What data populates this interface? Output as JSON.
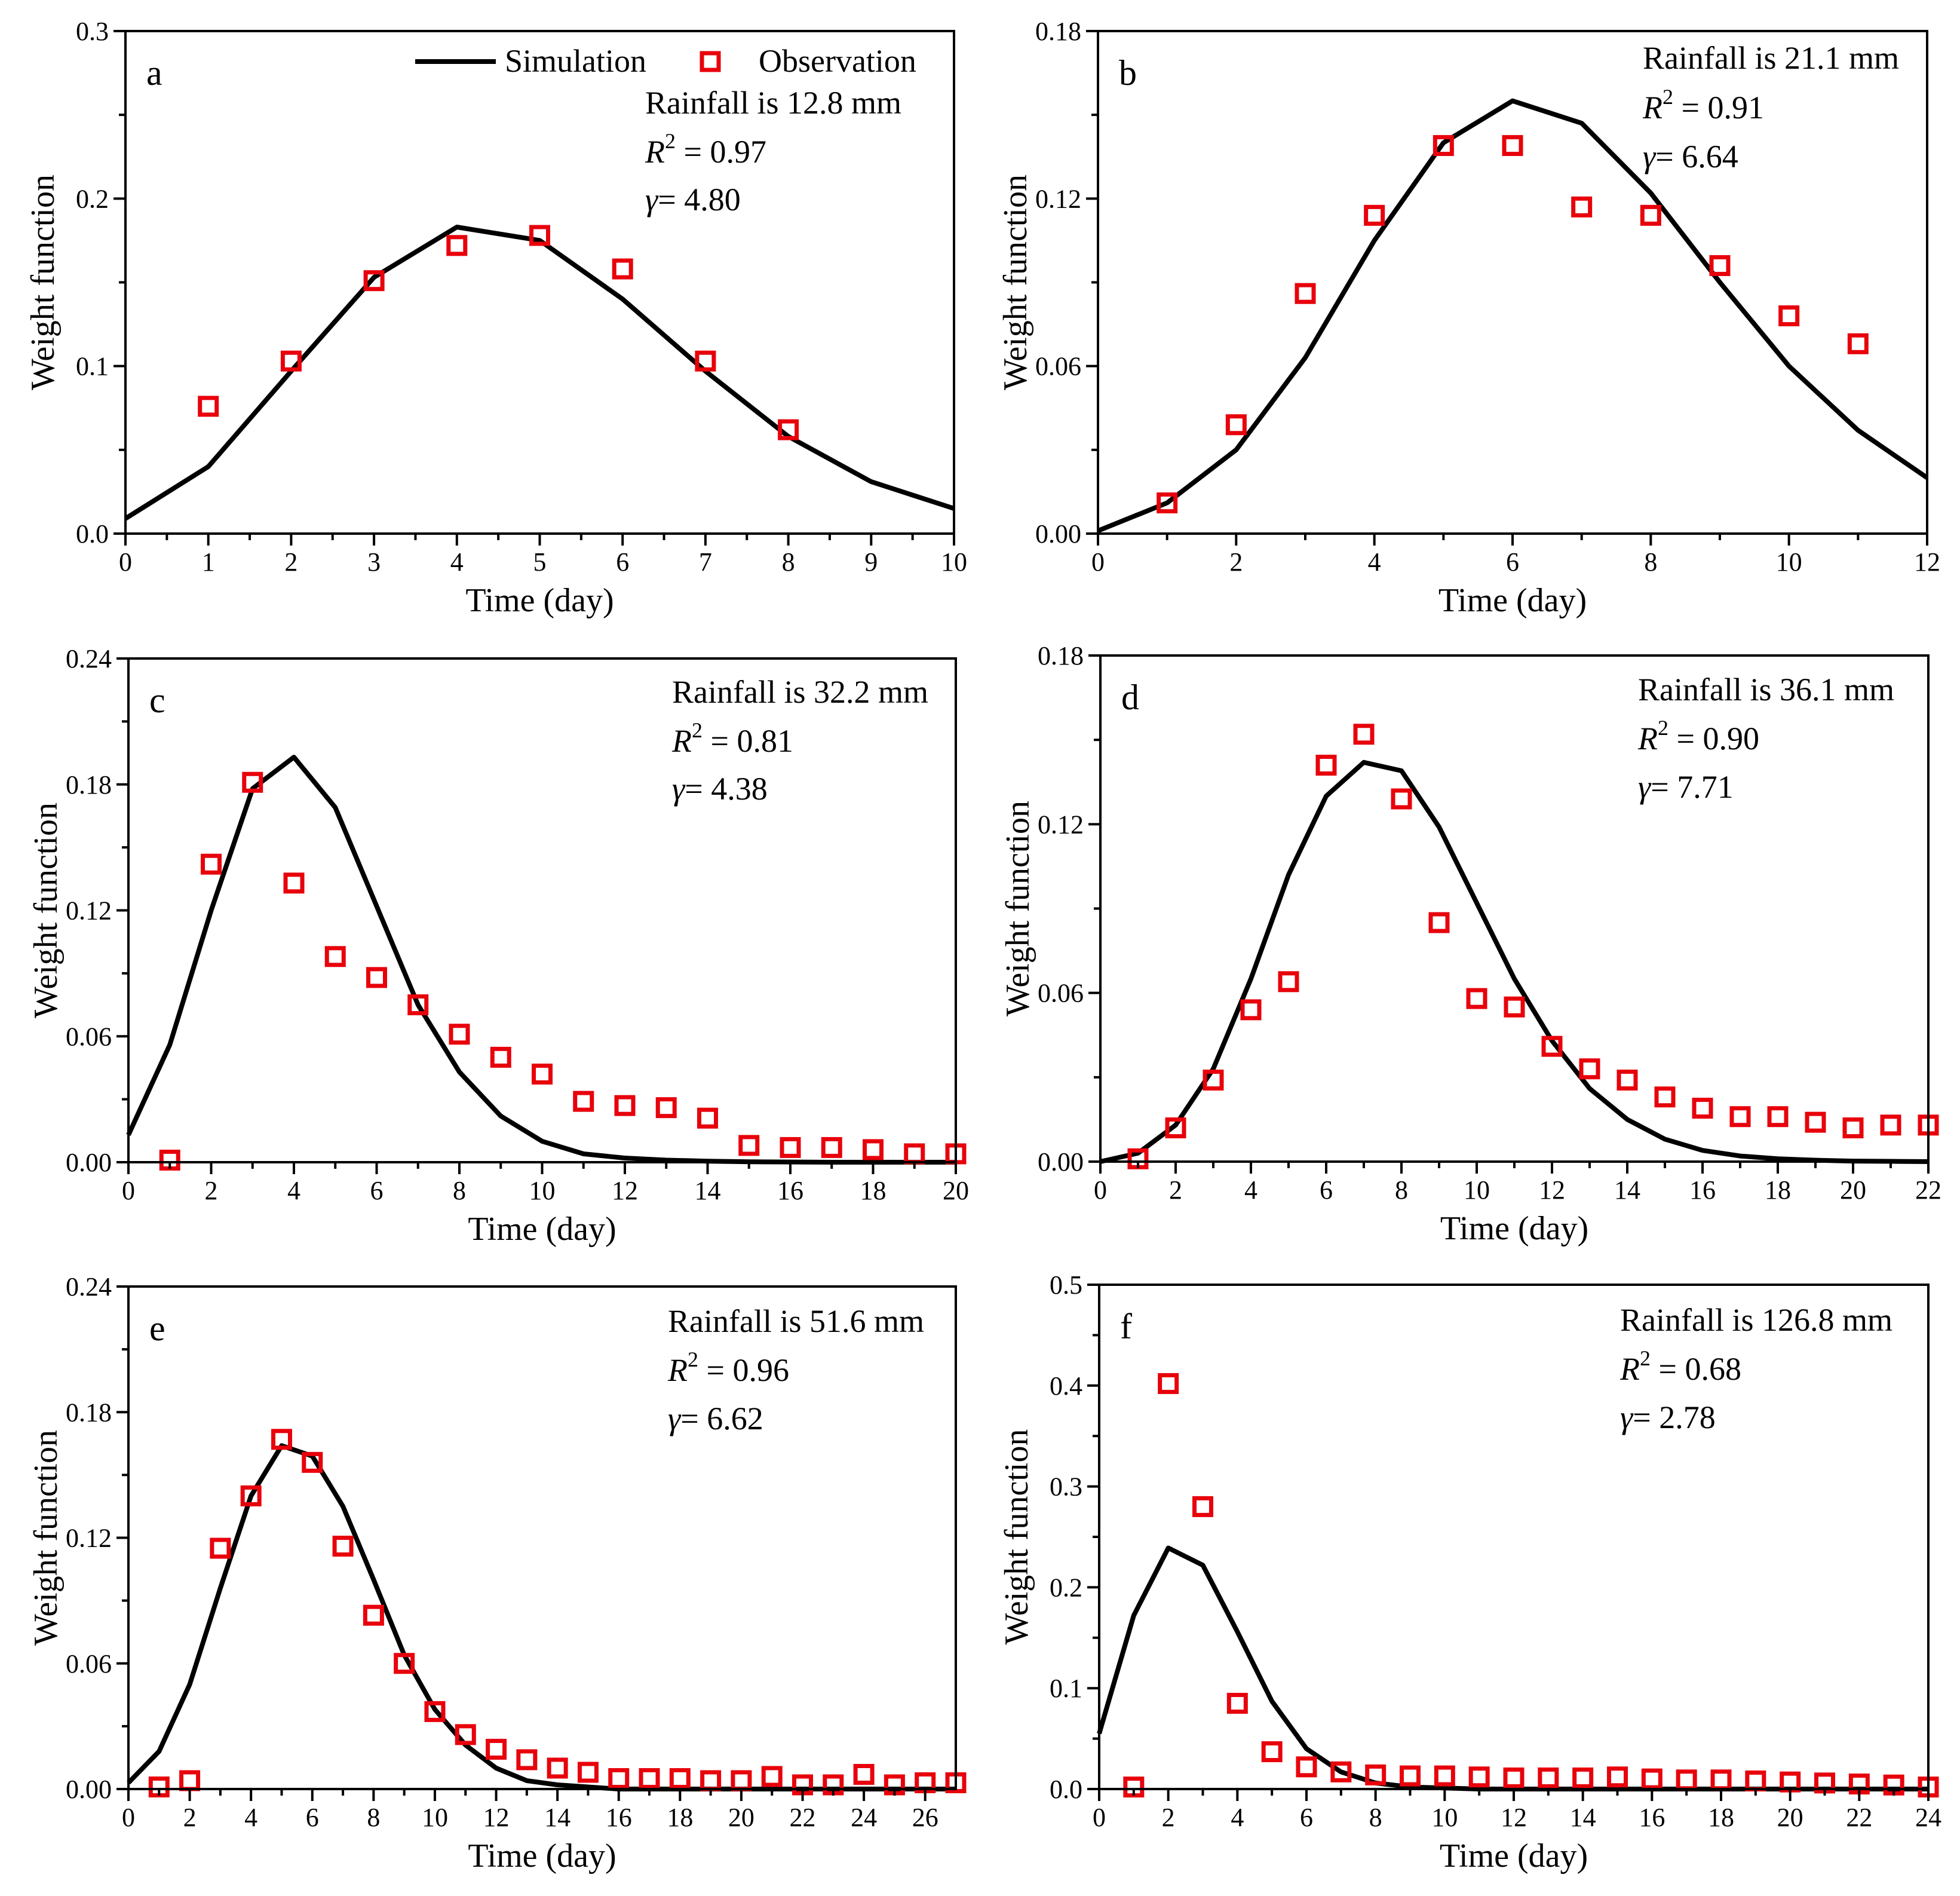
{
  "legend": {
    "simulation_label": "Simulation",
    "observation_label": "Observation"
  },
  "styles": {
    "sim_color": "#000000",
    "obs_color": "#e8000b"
  },
  "axis_labels": {
    "xlabel": "Time (day)",
    "ylabel": "Weight function"
  },
  "chart_data": [
    {
      "type": "line+scatter",
      "panel": "a",
      "rainfall_text": "Rainfall is 12.8 mm",
      "r2": "0.97",
      "gamma": "4.80",
      "xlim": [
        0,
        10
      ],
      "ylim": [
        0,
        0.3
      ],
      "xticks": [
        0,
        1,
        2,
        3,
        4,
        5,
        6,
        7,
        8,
        9,
        10
      ],
      "xtick_labels": [
        "0",
        "1",
        "2",
        "3",
        "4",
        "5",
        "6",
        "7",
        "8",
        "9",
        "10"
      ],
      "yticks": [
        0,
        0.1,
        0.2,
        0.3
      ],
      "ytick_labels": [
        "0.0",
        "0.1",
        "0.2",
        "0.3"
      ],
      "simulation": {
        "x": [
          0,
          1,
          2,
          3,
          4,
          5,
          6,
          7,
          8,
          9,
          10
        ],
        "y": [
          0.009,
          0.04,
          0.097,
          0.153,
          0.183,
          0.175,
          0.14,
          0.097,
          0.058,
          0.031,
          0.015
        ]
      },
      "observation": {
        "x": [
          1,
          2,
          3,
          4,
          5,
          6,
          7,
          8
        ],
        "y": [
          0.076,
          0.103,
          0.151,
          0.172,
          0.178,
          0.158,
          0.103,
          0.062
        ]
      }
    },
    {
      "type": "line+scatter",
      "panel": "b",
      "rainfall_text": "Rainfall is 21.1 mm",
      "r2": "0.91",
      "gamma": "6.64",
      "xlim": [
        0,
        12
      ],
      "ylim": [
        0,
        0.18
      ],
      "xticks": [
        0,
        2,
        4,
        6,
        8,
        10,
        12
      ],
      "xtick_labels": [
        "0",
        "2",
        "4",
        "6",
        "8",
        "10",
        "12"
      ],
      "yticks": [
        0,
        0.06,
        0.12,
        0.18
      ],
      "ytick_labels": [
        "0.00",
        "0.06",
        "0.12",
        "0.18"
      ],
      "simulation": {
        "x": [
          0,
          1,
          2,
          3,
          4,
          5,
          6,
          7,
          8,
          9,
          10,
          11,
          12
        ],
        "y": [
          0.001,
          0.011,
          0.03,
          0.063,
          0.105,
          0.14,
          0.155,
          0.147,
          0.122,
          0.09,
          0.06,
          0.037,
          0.02
        ]
      },
      "observation": {
        "x": [
          1,
          2,
          3,
          4,
          5,
          6,
          7,
          8,
          9,
          10,
          11
        ],
        "y": [
          0.011,
          0.039,
          0.086,
          0.114,
          0.139,
          0.139,
          0.117,
          0.114,
          0.096,
          0.078,
          0.068
        ]
      }
    },
    {
      "type": "line+scatter",
      "panel": "c",
      "rainfall_text": "Rainfall is 32.2 mm",
      "r2": "0.81",
      "gamma": "4.38",
      "xlim": [
        0,
        20
      ],
      "ylim": [
        0,
        0.24
      ],
      "xticks": [
        0,
        2,
        4,
        6,
        8,
        10,
        12,
        14,
        16,
        18,
        20
      ],
      "xtick_labels": [
        "0",
        "2",
        "4",
        "6",
        "8",
        "10",
        "12",
        "14",
        "16",
        "18",
        "20"
      ],
      "yticks": [
        0,
        0.06,
        0.12,
        0.18,
        0.24
      ],
      "ytick_labels": [
        "0.00",
        "0.06",
        "0.12",
        "0.18",
        "0.24"
      ],
      "simulation": {
        "x": [
          0,
          1,
          2,
          3,
          4,
          5,
          6,
          7,
          8,
          9,
          10,
          11,
          12,
          13,
          14,
          15,
          16,
          17,
          18,
          19,
          20
        ],
        "y": [
          0.013,
          0.056,
          0.12,
          0.178,
          0.193,
          0.169,
          0.122,
          0.075,
          0.043,
          0.022,
          0.01,
          0.004,
          0.002,
          0.001,
          0.0005,
          0.0002,
          0.0001,
          0,
          0,
          0,
          0
        ]
      },
      "observation": {
        "x": [
          1,
          2,
          3,
          4,
          5,
          6,
          7,
          8,
          9,
          10,
          11,
          12,
          13,
          14,
          15,
          16,
          17,
          18,
          19,
          20
        ],
        "y": [
          0.001,
          0.142,
          0.181,
          0.133,
          0.098,
          0.088,
          0.075,
          0.061,
          0.05,
          0.042,
          0.029,
          0.027,
          0.026,
          0.021,
          0.008,
          0.007,
          0.007,
          0.006,
          0.004,
          0.004
        ]
      }
    },
    {
      "type": "line+scatter",
      "panel": "d",
      "rainfall_text": "Rainfall is 36.1 mm",
      "r2": "0.90",
      "gamma": "7.71",
      "xlim": [
        0,
        22
      ],
      "ylim": [
        0,
        0.18
      ],
      "xticks": [
        0,
        2,
        4,
        6,
        8,
        10,
        12,
        14,
        16,
        18,
        20,
        22
      ],
      "xtick_labels": [
        "0",
        "2",
        "4",
        "6",
        "8",
        "10",
        "12",
        "14",
        "16",
        "18",
        "20",
        "22"
      ],
      "yticks": [
        0,
        0.06,
        0.12,
        0.18
      ],
      "ytick_labels": [
        "0.00",
        "0.06",
        "0.12",
        "0.18"
      ],
      "simulation": {
        "x": [
          0,
          1,
          2,
          3,
          4,
          5,
          6,
          7,
          8,
          9,
          10,
          11,
          12,
          13,
          14,
          15,
          16,
          17,
          18,
          19,
          20,
          21,
          22
        ],
        "y": [
          0,
          0.003,
          0.013,
          0.033,
          0.065,
          0.102,
          0.13,
          0.142,
          0.139,
          0.119,
          0.092,
          0.065,
          0.043,
          0.026,
          0.015,
          0.008,
          0.004,
          0.002,
          0.001,
          0.0005,
          0.0002,
          0.0001,
          0
        ]
      },
      "observation": {
        "x": [
          1,
          2,
          3,
          4,
          5,
          6,
          7,
          8,
          9,
          10,
          11,
          12,
          13,
          14,
          15,
          16,
          17,
          18,
          19,
          20,
          21,
          22
        ],
        "y": [
          0.001,
          0.012,
          0.029,
          0.054,
          0.064,
          0.141,
          0.152,
          0.129,
          0.085,
          0.058,
          0.055,
          0.041,
          0.033,
          0.029,
          0.023,
          0.019,
          0.016,
          0.016,
          0.014,
          0.012,
          0.013,
          0.013
        ]
      }
    },
    {
      "type": "line+scatter",
      "panel": "e",
      "rainfall_text": "Rainfall is 51.6 mm",
      "r2": "0.96",
      "gamma": "6.62",
      "xlim": [
        0,
        27
      ],
      "ylim": [
        0,
        0.24
      ],
      "xticks": [
        0,
        2,
        4,
        6,
        8,
        10,
        12,
        14,
        16,
        18,
        20,
        22,
        24,
        26
      ],
      "xtick_labels": [
        "0",
        "2",
        "4",
        "6",
        "8",
        "10",
        "12",
        "14",
        "16",
        "18",
        "20",
        "22",
        "24",
        "26"
      ],
      "yticks": [
        0,
        0.06,
        0.12,
        0.18,
        0.24
      ],
      "ytick_labels": [
        "0.00",
        "0.06",
        "0.12",
        "0.18",
        "0.24"
      ],
      "simulation": {
        "x": [
          0,
          1,
          2,
          3,
          4,
          5,
          6,
          7,
          8,
          9,
          10,
          11,
          12,
          13,
          14,
          15,
          16,
          17,
          18,
          19,
          20,
          21,
          22,
          23,
          24,
          25,
          26,
          27
        ],
        "y": [
          0.003,
          0.018,
          0.05,
          0.096,
          0.14,
          0.164,
          0.159,
          0.135,
          0.1,
          0.064,
          0.038,
          0.021,
          0.01,
          0.004,
          0.002,
          0.001,
          0,
          0,
          0,
          0,
          0,
          0,
          0,
          0,
          0,
          0,
          0,
          0
        ]
      },
      "observation": {
        "x": [
          1,
          2,
          3,
          4,
          5,
          6,
          7,
          8,
          9,
          10,
          11,
          12,
          13,
          14,
          15,
          16,
          17,
          18,
          19,
          20,
          21,
          22,
          23,
          24,
          25,
          26,
          27
        ],
        "y": [
          0.001,
          0.004,
          0.115,
          0.14,
          0.167,
          0.156,
          0.116,
          0.083,
          0.06,
          0.037,
          0.026,
          0.019,
          0.014,
          0.01,
          0.008,
          0.005,
          0.005,
          0.005,
          0.004,
          0.004,
          0.006,
          0.002,
          0.002,
          0.007,
          0.002,
          0.003,
          0.003
        ]
      }
    },
    {
      "type": "line+scatter",
      "panel": "f",
      "rainfall_text": "Rainfall is 126.8 mm",
      "r2": "0.68",
      "gamma": "2.78",
      "xlim": [
        0,
        24
      ],
      "ylim": [
        0,
        0.5
      ],
      "xticks": [
        0,
        2,
        4,
        6,
        8,
        10,
        12,
        14,
        16,
        18,
        20,
        22,
        24
      ],
      "xtick_labels": [
        "0",
        "2",
        "4",
        "6",
        "8",
        "10",
        "12",
        "14",
        "16",
        "18",
        "20",
        "22",
        "24"
      ],
      "yticks": [
        0,
        0.1,
        0.2,
        0.3,
        0.4,
        0.5
      ],
      "ytick_labels": [
        "0.0",
        "0.1",
        "0.2",
        "0.3",
        "0.4",
        "0.5"
      ],
      "simulation": {
        "x": [
          0,
          1,
          2,
          3,
          4,
          5,
          6,
          7,
          8,
          9,
          10,
          11,
          12,
          13,
          14,
          15,
          16,
          17,
          18,
          19,
          20,
          21,
          22,
          23,
          24
        ],
        "y": [
          0.055,
          0.172,
          0.239,
          0.222,
          0.156,
          0.087,
          0.04,
          0.017,
          0.006,
          0.002,
          0.001,
          0,
          0,
          0,
          0,
          0,
          0,
          0,
          0,
          0,
          0,
          0,
          0,
          0,
          0
        ]
      },
      "observation": {
        "x": [
          1,
          2,
          3,
          4,
          5,
          6,
          7,
          8,
          9,
          10,
          11,
          12,
          13,
          14,
          15,
          16,
          17,
          18,
          19,
          20,
          21,
          22,
          23,
          24
        ],
        "y": [
          0.002,
          0.402,
          0.28,
          0.085,
          0.037,
          0.022,
          0.017,
          0.014,
          0.013,
          0.013,
          0.012,
          0.011,
          0.011,
          0.011,
          0.012,
          0.01,
          0.009,
          0.009,
          0.008,
          0.007,
          0.006,
          0.005,
          0.004,
          0.002
        ]
      }
    }
  ]
}
